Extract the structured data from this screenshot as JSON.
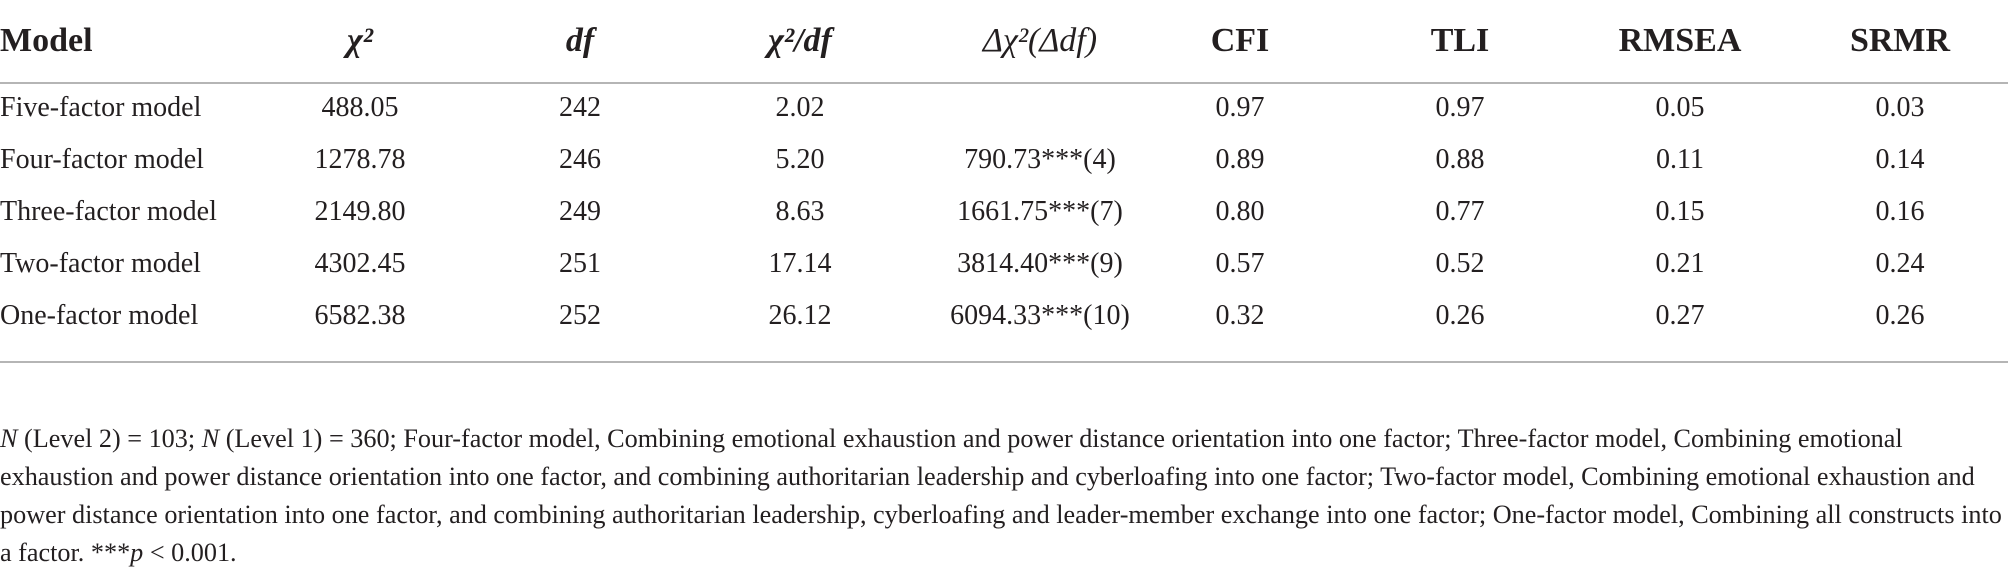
{
  "table": {
    "headers": {
      "model": "Model",
      "chi2": "χ²",
      "df": "df",
      "chi2_df": "χ²/df",
      "delta": "Δχ²(Δdf)",
      "cfi": "CFI",
      "tli": "TLI",
      "rmsea": "RMSEA",
      "srmr": "SRMR"
    },
    "rows": [
      {
        "model": "Five-factor model",
        "chi2": "488.05",
        "df": "242",
        "chi2_df": "2.02",
        "delta": "",
        "cfi": "0.97",
        "tli": "0.97",
        "rmsea": "0.05",
        "srmr": "0.03"
      },
      {
        "model": "Four-factor model",
        "chi2": "1278.78",
        "df": "246",
        "chi2_df": "5.20",
        "delta": "790.73***(4)",
        "cfi": "0.89",
        "tli": "0.88",
        "rmsea": "0.11",
        "srmr": "0.14"
      },
      {
        "model": "Three-factor model",
        "chi2": "2149.80",
        "df": "249",
        "chi2_df": "8.63",
        "delta": "1661.75***(7)",
        "cfi": "0.80",
        "tli": "0.77",
        "rmsea": "0.15",
        "srmr": "0.16"
      },
      {
        "model": "Two-factor model",
        "chi2": "4302.45",
        "df": "251",
        "chi2_df": "17.14",
        "delta": "3814.40***(9)",
        "cfi": "0.57",
        "tli": "0.52",
        "rmsea": "0.21",
        "srmr": "0.24"
      },
      {
        "model": "One-factor model",
        "chi2": "6582.38",
        "df": "252",
        "chi2_df": "26.12",
        "delta": "6094.33***(10)",
        "cfi": "0.32",
        "tli": "0.26",
        "rmsea": "0.27",
        "srmr": "0.26"
      }
    ]
  },
  "note": {
    "n_symbol_1": "N",
    "part_1": " (Level 2) = 103; ",
    "n_symbol_2": "N",
    "part_2": " (Level 1) = 360; Four-factor model, Combining emotional exhaustion and power distance orientation into one factor; Three-factor model, Combining emotional exhaustion and power distance orientation into one factor, and combining authoritarian leadership and cyberloafing into one factor; Two-factor model, Combining emotional exhaustion and power distance orientation into one factor, and combining authoritarian leadership, cyberloafing and leader-member exchange into one factor; One-factor model, Combining all constructs into a factor. ***",
    "p_symbol": "p",
    "part_3": " < 0.001."
  }
}
